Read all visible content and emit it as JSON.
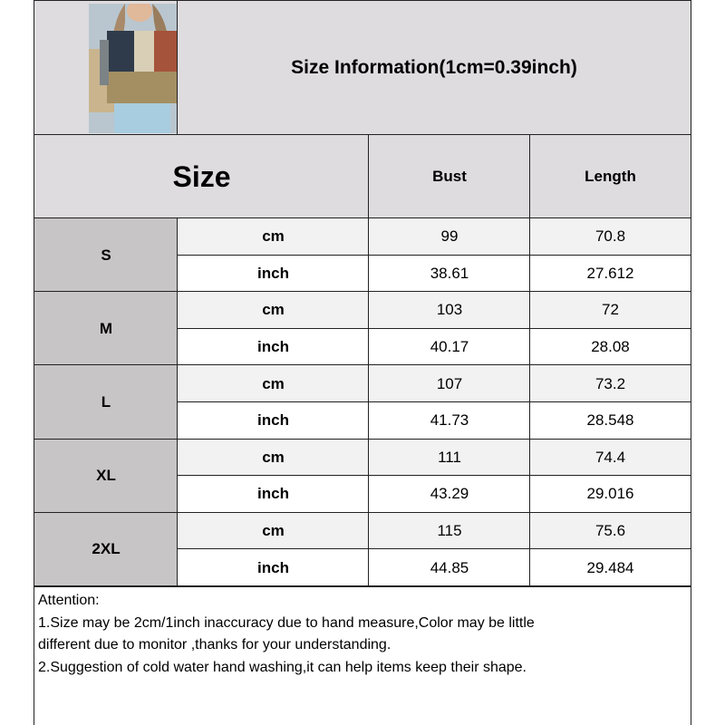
{
  "title": "Size Information(1cm=0.39inch)",
  "product_image": "woman wearing patchwork color-block button-up shirt and light blue jeans",
  "header": {
    "size": "Size",
    "bust": "Bust",
    "length": "Length"
  },
  "rows": [
    {
      "size": "S",
      "cm": {
        "unit": "cm",
        "bust": "99",
        "length": "70.8"
      },
      "inch": {
        "unit": "inch",
        "bust": "38.61",
        "length": "27.612"
      }
    },
    {
      "size": "M",
      "cm": {
        "unit": "cm",
        "bust": "103",
        "length": "72"
      },
      "inch": {
        "unit": "inch",
        "bust": "40.17",
        "length": "28.08"
      }
    },
    {
      "size": "L",
      "cm": {
        "unit": "cm",
        "bust": "107",
        "length": "73.2"
      },
      "inch": {
        "unit": "inch",
        "bust": "41.73",
        "length": "28.548"
      }
    },
    {
      "size": "XL",
      "cm": {
        "unit": "cm",
        "bust": "111",
        "length": "74.4"
      },
      "inch": {
        "unit": "inch",
        "bust": "43.29",
        "length": "29.016"
      }
    },
    {
      "size": "2XL",
      "cm": {
        "unit": "cm",
        "bust": "115",
        "length": "75.6"
      },
      "inch": {
        "unit": "inch",
        "bust": "44.85",
        "length": "29.484"
      }
    }
  ],
  "notes": [
    "Attention:",
    "1.Size may be 2cm/1inch inaccuracy due to hand measure,Color may be little",
    "different due to monitor ,thanks for your understanding.",
    "2.Suggestion of cold water hand washing,it can help items keep their shape."
  ],
  "colors": {
    "header": "#dedcde",
    "size_cell": "#c8c5c6",
    "cm_row": "#f2f2f2",
    "inch_row": "#ffffff"
  }
}
